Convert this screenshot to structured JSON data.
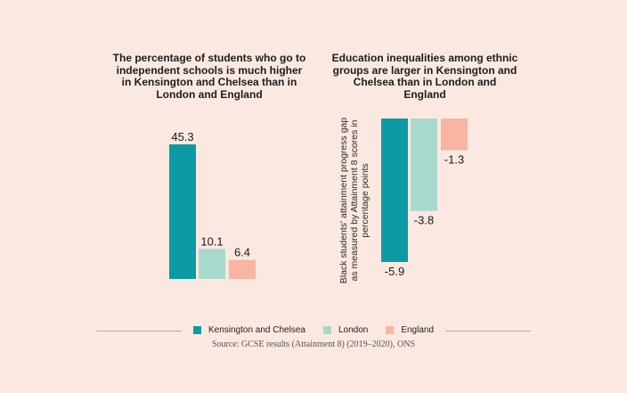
{
  "colors": {
    "background": "#fbe9e1",
    "kensington": "#0c9aa5",
    "london": "#a9d9cc",
    "england": "#f7b5a2"
  },
  "chart_data": [
    {
      "type": "bar",
      "title": "The percentage of students who go to independent schools is much higher in Kensington and Chelsea than in London and England",
      "categories": [
        "Kensington and Chelsea",
        "London",
        "England"
      ],
      "values": [
        45.3,
        10.1,
        6.4
      ],
      "data_labels": [
        "45.3",
        "10.1",
        "6.4"
      ],
      "ylim": [
        0,
        50
      ],
      "xlabel": "",
      "ylabel": ""
    },
    {
      "type": "bar",
      "title": "Education inequalities among ethnic groups are larger in Kensington and Chelsea than in London and England",
      "categories": [
        "Kensington and Chelsea",
        "London",
        "England"
      ],
      "values": [
        -5.9,
        -3.8,
        -1.3
      ],
      "data_labels": [
        "-5.9",
        "-3.8",
        "-1.3"
      ],
      "ylim": [
        -6,
        0
      ],
      "xlabel": "",
      "ylabel": "Black students' attainment progress gap as measured by Attainment 8 scores in percentage points"
    }
  ],
  "legend": {
    "items": [
      {
        "label": "Kensington and Chelsea",
        "color": "#0c9aa5"
      },
      {
        "label": "London",
        "color": "#a9d9cc"
      },
      {
        "label": "England",
        "color": "#f7b5a2"
      }
    ]
  },
  "source": "Source: GCSE results (Attainment 8) (2019–2020), ONS"
}
